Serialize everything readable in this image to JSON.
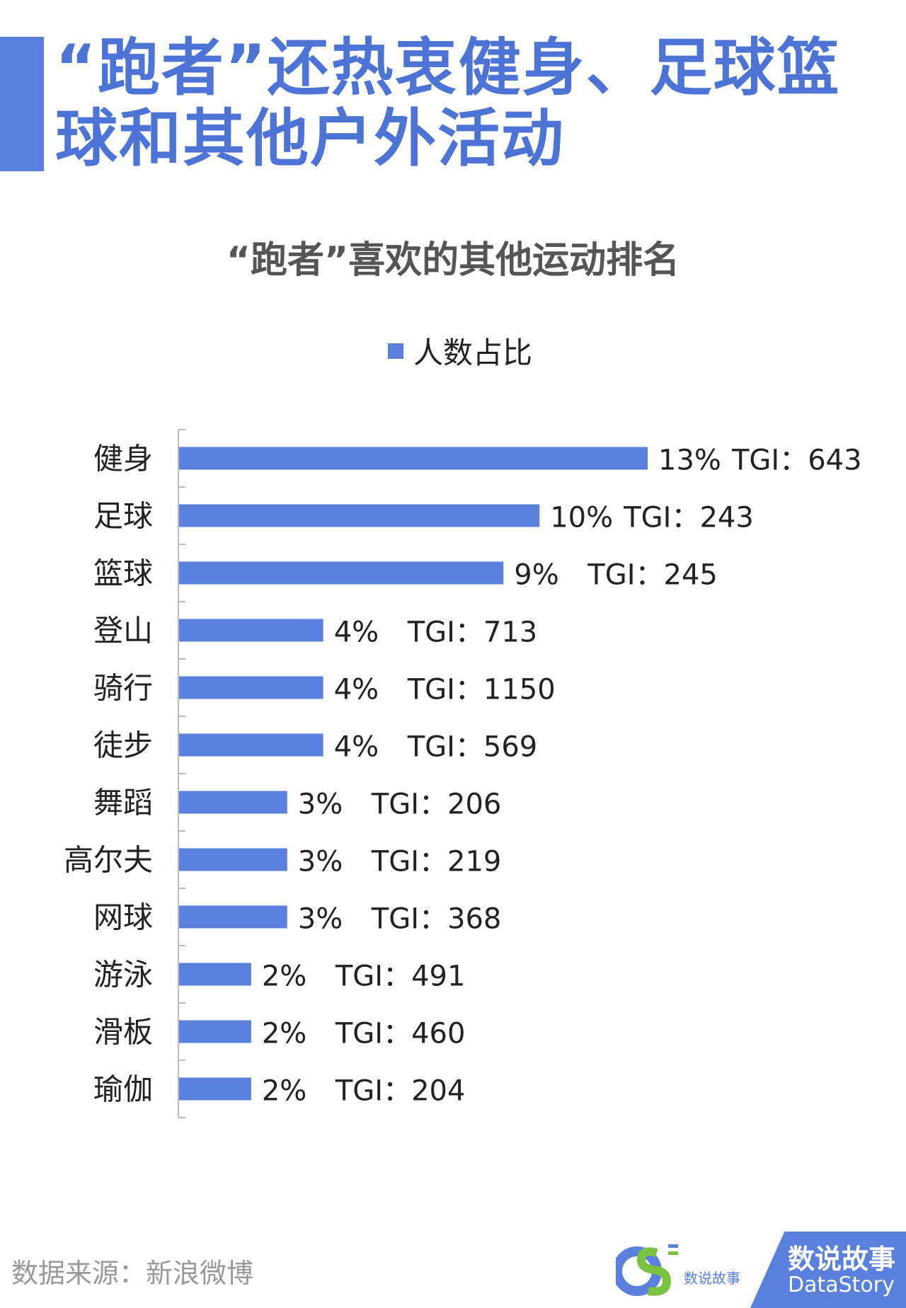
{
  "header": {
    "title_line1": "“跑者”还热衷健身、足球篮",
    "title_line2": "球和其他户外活动"
  },
  "chart_data": {
    "type": "bar",
    "orientation": "horizontal",
    "title": "“跑者”喜欢的其他运动排名",
    "series": [
      {
        "name": "人数占比",
        "color": "#5b7fdc",
        "values": [
          13,
          10,
          9,
          4,
          4,
          4,
          3,
          3,
          3,
          2,
          2,
          2
        ]
      }
    ],
    "categories": [
      "健身",
      "足球",
      "篮球",
      "登山",
      "骑行",
      "徒步",
      "舞蹈",
      "高尔夫",
      "网球",
      "游泳",
      "滑板",
      "瑜伽"
    ],
    "value_labels": [
      "13%",
      "10%",
      "9%",
      "4%",
      "4%",
      "4%",
      "3%",
      "3%",
      "3%",
      "2%",
      "2%",
      "2%"
    ],
    "tgi_labels": [
      "TGI：643",
      "TGI：243",
      "TGI：245",
      "TGI：713",
      "TGI：1150",
      "TGI：569",
      "TGI：206",
      "TGI：219",
      "TGI：368",
      "TGI：491",
      "TGI：460",
      "TGI：204"
    ],
    "tgi": [
      643,
      243,
      245,
      713,
      1150,
      569,
      206,
      219,
      368,
      491,
      460,
      204
    ],
    "legend_position": "top-center",
    "grid": false,
    "xlim": [
      0,
      13
    ]
  },
  "footer": {
    "source": "数据来源：新浪微博",
    "brand_cn": "数说故事",
    "brand_en": "DataStory"
  }
}
